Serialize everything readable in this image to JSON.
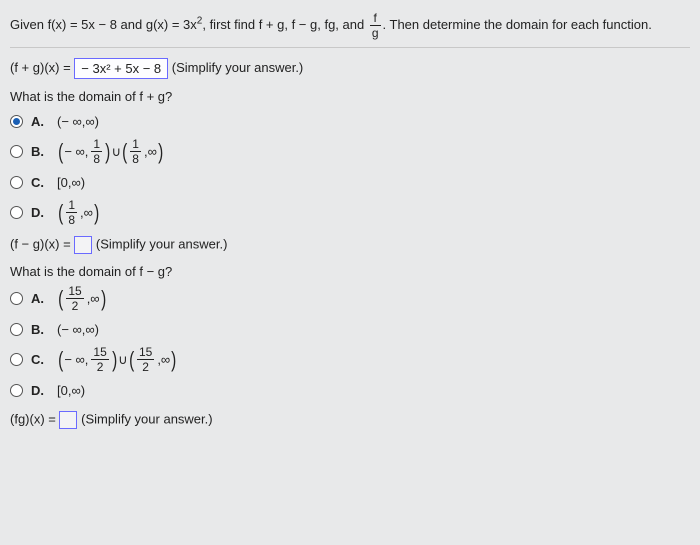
{
  "stem": {
    "prefix": "Given f(x) = 5x − 8 and g(x) = 3x",
    "exp": "2",
    "mid": ", first find f + g, f − g, fg, and ",
    "frac_num": "f",
    "frac_den": "g",
    "suffix": ". Then determine the domain for each function."
  },
  "part1": {
    "lhs": "(f + g)(x) = ",
    "answer": "− 3x² + 5x − 8",
    "hint": " (Simplify your answer.)"
  },
  "q1": {
    "prompt": "What is the domain of f + g?",
    "options": {
      "A": {
        "label": "A.",
        "text": "(− ∞,∞)",
        "selected": true
      },
      "B": {
        "label": "B.",
        "left": "− ∞,",
        "num1": "1",
        "den1": "8",
        "union": "∪",
        "num2": "1",
        "den2": "8",
        "right": ",∞"
      },
      "C": {
        "label": "C.",
        "text": "[0,∞)"
      },
      "D": {
        "label": "D.",
        "num": "1",
        "den": "8",
        "right": ",∞"
      }
    }
  },
  "part2": {
    "lhs": "(f − g)(x) = ",
    "hint": " (Simplify your answer.)"
  },
  "q2": {
    "prompt": "What is the domain of f − g?",
    "options": {
      "A": {
        "label": "A.",
        "num": "15",
        "den": "2",
        "right": ",∞"
      },
      "B": {
        "label": "B.",
        "text": "(− ∞,∞)"
      },
      "C": {
        "label": "C.",
        "left": "− ∞,",
        "num1": "15",
        "den1": "2",
        "union": "∪",
        "num2": "15",
        "den2": "2",
        "right": ",∞"
      },
      "D": {
        "label": "D.",
        "text": "[0,∞)"
      }
    }
  },
  "part3": {
    "lhs": "(fg)(x) = ",
    "hint": " (Simplify your answer.)"
  }
}
